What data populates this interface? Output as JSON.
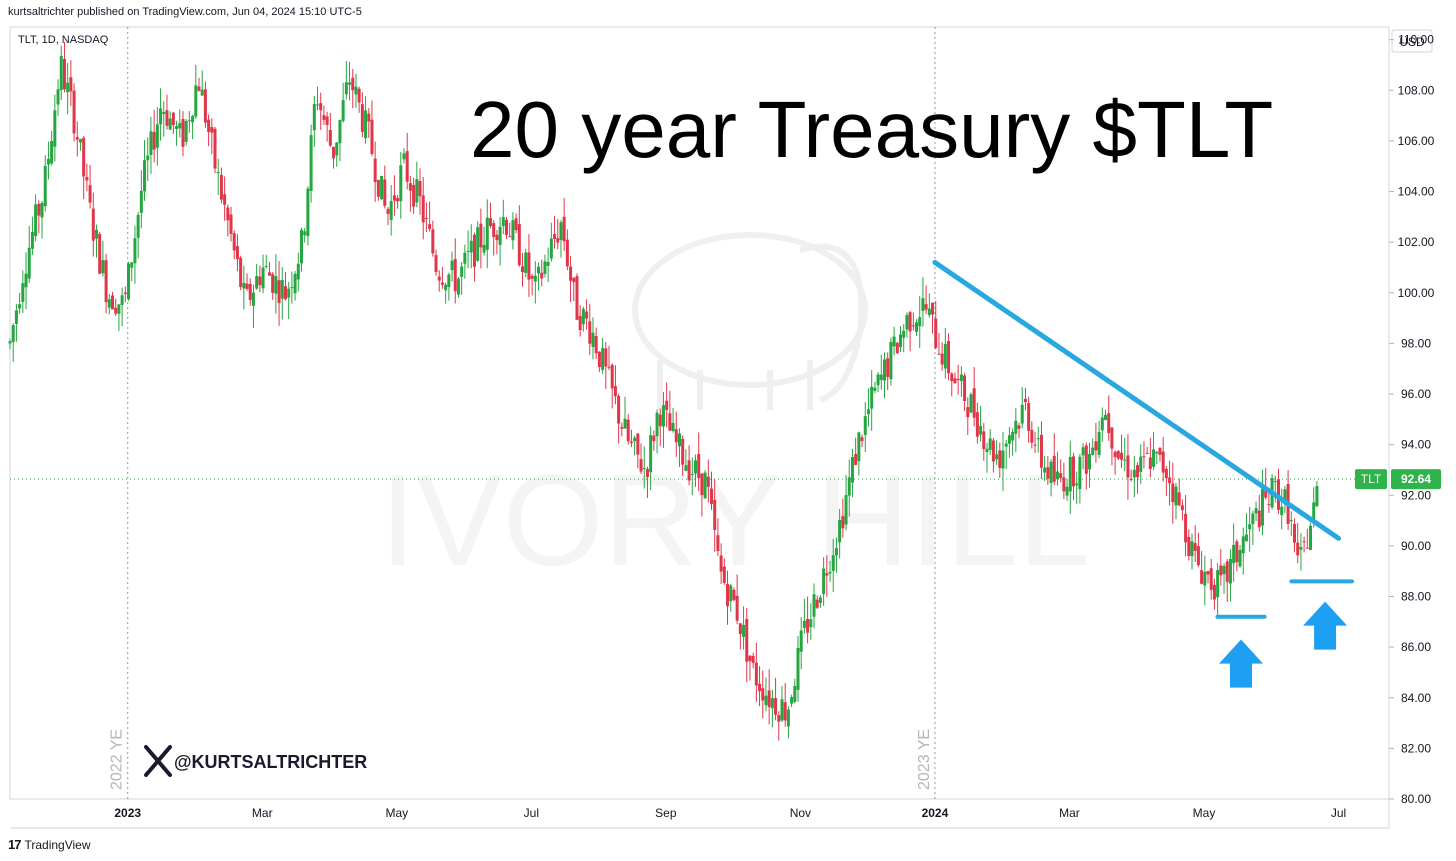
{
  "header": {
    "publisher": "kurtsaltrichter published on TradingView.com, Jun 04, 2024 15:10 UTC-5",
    "symbol_info": "TLT, 1D, NASDAQ",
    "currency": "USD"
  },
  "title": "20 year Treasury $TLT",
  "watermark": "IVORY HILL",
  "handle": "@KURTSALTRICHTER",
  "footer": {
    "brand": "TradingView"
  },
  "colors": {
    "up": "#26a641",
    "down": "#e0364a",
    "trendline": "#27a8e0",
    "price_tag": "#2fb44b"
  },
  "chart_data": {
    "type": "candlestick",
    "symbol": "TLT",
    "last_price": "92.64",
    "y_ticks": [
      80,
      82,
      84,
      86,
      88,
      90,
      92,
      94,
      96,
      98,
      100,
      102,
      104,
      106,
      108,
      110
    ],
    "ylim": [
      80,
      110.5
    ],
    "x_ticks": [
      {
        "label": "2023",
        "t": 0.0,
        "bold": true
      },
      {
        "label": "Mar",
        "t": 2.0
      },
      {
        "label": "May",
        "t": 4.0
      },
      {
        "label": "Jul",
        "t": 6.0
      },
      {
        "label": "Sep",
        "t": 8.0
      },
      {
        "label": "Nov",
        "t": 10.0
      },
      {
        "label": "2024",
        "t": 12.0,
        "bold": true
      },
      {
        "label": "Mar",
        "t": 14.0
      },
      {
        "label": "May",
        "t": 16.0
      },
      {
        "label": "Jul",
        "t": 18.0
      }
    ],
    "xlim": [
      -1.75,
      18.75
    ],
    "year_end_markers": [
      {
        "label": "2022 YE",
        "t": 0.0
      },
      {
        "label": "2023 YE",
        "t": 12.0
      }
    ],
    "price_path": [
      [
        -1.75,
        98
      ],
      [
        -1.55,
        101
      ],
      [
        -1.25,
        104
      ],
      [
        -1.0,
        109
      ],
      [
        -0.8,
        107
      ],
      [
        -0.55,
        103
      ],
      [
        -0.3,
        100
      ],
      [
        -0.05,
        99.5
      ],
      [
        0.2,
        104
      ],
      [
        0.5,
        107.5
      ],
      [
        0.8,
        106
      ],
      [
        1.05,
        108.5
      ],
      [
        1.3,
        105
      ],
      [
        1.55,
        102
      ],
      [
        1.75,
        99.5
      ],
      [
        2.0,
        101
      ],
      [
        2.35,
        100
      ],
      [
        2.6,
        102
      ],
      [
        2.8,
        108
      ],
      [
        3.05,
        105.5
      ],
      [
        3.3,
        108.5
      ],
      [
        3.6,
        106
      ],
      [
        3.85,
        103
      ],
      [
        4.1,
        105
      ],
      [
        4.35,
        103.5
      ],
      [
        4.6,
        101
      ],
      [
        4.9,
        100.5
      ],
      [
        5.1,
        101.5
      ],
      [
        5.35,
        102.5
      ],
      [
        5.6,
        103
      ],
      [
        5.85,
        101.5
      ],
      [
        6.05,
        100
      ],
      [
        6.25,
        101.5
      ],
      [
        6.45,
        102.8
      ],
      [
        6.65,
        99.5
      ],
      [
        6.9,
        98.5
      ],
      [
        7.2,
        96
      ],
      [
        7.45,
        94
      ],
      [
        7.7,
        93
      ],
      [
        7.9,
        95.5
      ],
      [
        8.15,
        94
      ],
      [
        8.4,
        93
      ],
      [
        8.6,
        92.5
      ],
      [
        8.8,
        89
      ],
      [
        9.05,
        87.5
      ],
      [
        9.3,
        85
      ],
      [
        9.55,
        84
      ],
      [
        9.8,
        83.5
      ],
      [
        10.05,
        86.5
      ],
      [
        10.3,
        88.5
      ],
      [
        10.6,
        91
      ],
      [
        10.85,
        94
      ],
      [
        11.1,
        96
      ],
      [
        11.35,
        97.5
      ],
      [
        11.6,
        99
      ],
      [
        11.85,
        99.5
      ],
      [
        12.05,
        98
      ],
      [
        12.3,
        96.5
      ],
      [
        12.55,
        95.5
      ],
      [
        12.8,
        94
      ],
      [
        12.95,
        93.5
      ],
      [
        13.1,
        94.5
      ],
      [
        13.35,
        95.5
      ],
      [
        13.55,
        93.5
      ],
      [
        13.8,
        92.5
      ],
      [
        14.05,
        93
      ],
      [
        14.3,
        93.5
      ],
      [
        14.5,
        95.5
      ],
      [
        14.75,
        93.5
      ],
      [
        15.0,
        92.8
      ],
      [
        15.2,
        93.5
      ],
      [
        15.45,
        93
      ],
      [
        15.7,
        91
      ],
      [
        15.85,
        89.5
      ],
      [
        16.05,
        88.8
      ],
      [
        16.25,
        88.3
      ],
      [
        16.45,
        89.5
      ],
      [
        16.65,
        90.5
      ],
      [
        16.85,
        91.5
      ],
      [
        17.05,
        92.2
      ],
      [
        17.25,
        91.5
      ],
      [
        17.4,
        89
      ],
      [
        17.6,
        91
      ],
      [
        17.72,
        92.64
      ]
    ],
    "shapes": {
      "trendline": [
        [
          12.0,
          101.2
        ],
        [
          18.0,
          90.3
        ]
      ],
      "support_lines": [
        {
          "t0": 16.2,
          "t1": 16.9,
          "y": 87.2
        },
        {
          "t0": 17.3,
          "t1": 18.2,
          "y": 88.6
        }
      ],
      "arrows": [
        {
          "t": 16.55,
          "y_top": 86.3,
          "y_bottom": 84.4
        },
        {
          "t": 17.8,
          "y_top": 87.8,
          "y_bottom": 85.9
        }
      ]
    }
  }
}
